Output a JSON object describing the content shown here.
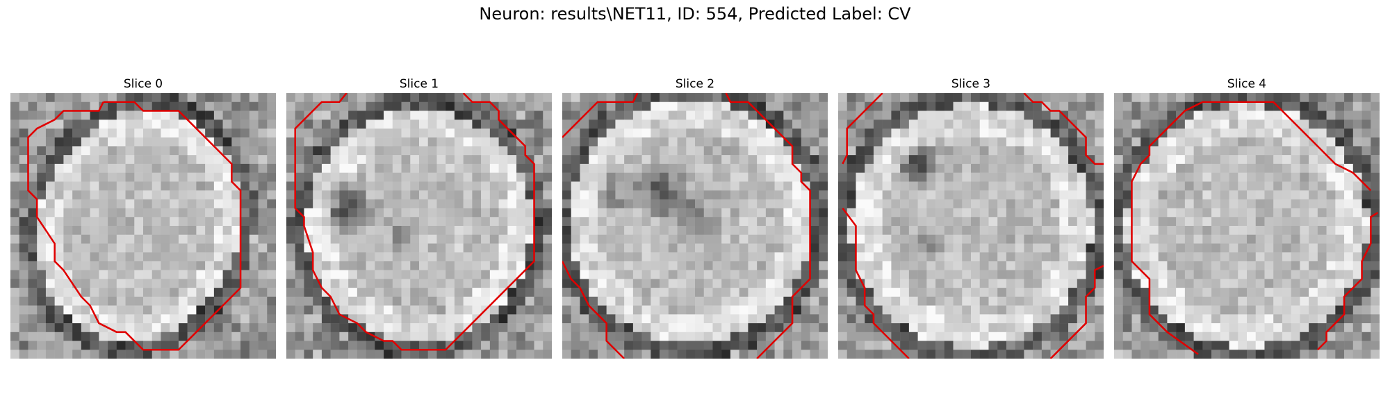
{
  "figure": {
    "title": "Neuron: results\\NET11, ID: 554, Predicted Label: CV"
  },
  "slices": [
    {
      "title": "Slice 0"
    },
    {
      "title": "Slice 1"
    },
    {
      "title": "Slice 2"
    },
    {
      "title": "Slice 3"
    },
    {
      "title": "Slice 4"
    }
  ],
  "colors": {
    "contour": "#e00000",
    "background": "#ffffff"
  }
}
